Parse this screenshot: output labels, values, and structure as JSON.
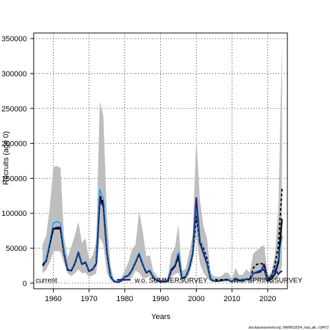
{
  "chart_data": {
    "type": "line",
    "title": "",
    "xlabel": "Years",
    "ylabel": "Recruits (age 0)",
    "xlim": [
      1954.5,
      2025.5
    ],
    "ylim": [
      -8000,
      358000
    ],
    "x_ticks": [
      1960,
      1970,
      1980,
      1990,
      2000,
      2010,
      2020
    ],
    "x_tick_labels": [
      "1960",
      "1970",
      "1980",
      "1990",
      "2000",
      "2010",
      "2020"
    ],
    "y_ticks": [
      0,
      50000,
      100000,
      150000,
      200000,
      250000,
      300000,
      350000
    ],
    "y_tick_labels": [
      "0",
      "50000",
      "100000",
      "150000",
      "200000",
      "250000",
      "300000",
      "350000"
    ],
    "grid": true,
    "grid_style": "dotted",
    "legend_position": "bottom",
    "caption": "stockassessment.org, NWWG2024_had_alk, r18472",
    "colors": {
      "band": "#bebebe",
      "current": "#000000",
      "summer": "#2a1f7a",
      "spring": "#87ceeb",
      "blue": "#1c6ed8"
    },
    "x": [
      1957,
      1958,
      1959,
      1960,
      1961,
      1962,
      1963,
      1964,
      1965,
      1966,
      1967,
      1968,
      1969,
      1970,
      1971,
      1972,
      1973,
      1974,
      1975,
      1976,
      1977,
      1978,
      1979,
      1980,
      1981,
      1982,
      1983,
      1984,
      1985,
      1986,
      1987,
      1988,
      1989,
      1990,
      1991,
      1992,
      1993,
      1994,
      1995,
      1996,
      1997,
      1998,
      1999,
      2000,
      2001,
      2002,
      2003,
      2004,
      2005,
      2006,
      2007,
      2008,
      2009,
      2010,
      2011,
      2012,
      2013,
      2014,
      2015,
      2016,
      2017,
      2018,
      2019,
      2020,
      2021,
      2022,
      2023,
      2024
    ],
    "band_lower": [
      14000,
      19000,
      30000,
      45000,
      46000,
      45000,
      28000,
      14000,
      10000,
      14000,
      20000,
      14000,
      15000,
      9000,
      11000,
      14000,
      65000,
      55000,
      15000,
      4000,
      1000,
      500,
      1500,
      4000,
      4000,
      8000,
      18000,
      15000,
      8000,
      7000,
      10000,
      4000,
      2000,
      1000,
      1000,
      1500,
      9000,
      13000,
      15000,
      3000,
      5000,
      12000,
      30000,
      70000,
      28000,
      15000,
      8000,
      2000,
      1500,
      1500,
      1500,
      2000,
      2000,
      1000,
      1500,
      1500,
      1500,
      2000,
      1500,
      4000,
      5000,
      5000,
      5000,
      1000,
      2000,
      5000,
      8000,
      25000
    ],
    "band_upper": [
      56000,
      68000,
      108000,
      166000,
      168000,
      165000,
      65000,
      37000,
      52000,
      68000,
      88000,
      58000,
      64000,
      32000,
      40000,
      60000,
      260000,
      240000,
      95000,
      25000,
      5000,
      4000,
      8000,
      18000,
      30000,
      48000,
      55000,
      103000,
      75000,
      38000,
      40000,
      17000,
      10000,
      5000,
      5000,
      8000,
      42000,
      50000,
      84000,
      18000,
      20000,
      44000,
      70000,
      210000,
      120000,
      82000,
      64000,
      15000,
      10000,
      9000,
      10000,
      15000,
      15000,
      6000,
      22000,
      12000,
      12000,
      20000,
      15000,
      43000,
      47000,
      52000,
      54000,
      12000,
      15000,
      40000,
      110000,
      345000
    ],
    "series": [
      {
        "name": "current",
        "style": "solid",
        "values": [
          25000,
          32000,
          56000,
          78000,
          78000,
          78000,
          42000,
          19000,
          18000,
          28000,
          44000,
          27000,
          30000,
          17000,
          20000,
          28000,
          122000,
          114000,
          44000,
          10000,
          2500,
          1500,
          3000,
          9000,
          11000,
          19000,
          30000,
          42000,
          27000,
          15000,
          18000,
          8000,
          4000,
          2000,
          2000,
          3000,
          18000,
          24000,
          38000,
          7000,
          9000,
          21000,
          43000,
          115000,
          58000,
          43000,
          28000,
          6000,
          3000,
          3000,
          4000,
          5000,
          5000,
          2000,
          7000,
          4000,
          4000,
          6000,
          5000,
          14000,
          16000,
          18000,
          20000,
          4000,
          6000,
          13000,
          30000,
          92000
        ]
      },
      {
        "name": "w.o. SUMMERSURVEY",
        "style": "solid",
        "values": [
          25000,
          32000,
          56000,
          78000,
          80000,
          80000,
          42000,
          19000,
          18000,
          28000,
          44000,
          27000,
          30000,
          17000,
          20000,
          28000,
          118000,
          110000,
          44000,
          10000,
          2500,
          1500,
          3000,
          9000,
          11000,
          19000,
          30000,
          42000,
          27000,
          15000,
          18000,
          8000,
          4000,
          2000,
          2000,
          3000,
          20000,
          25000,
          42000,
          7000,
          9000,
          21000,
          43000,
          122000,
          60000,
          43000,
          28000,
          6000,
          3000,
          3000,
          4000,
          5000,
          5000,
          2000,
          7000,
          4000,
          4000,
          6000,
          5000,
          14000,
          15000,
          16000,
          27000,
          6000,
          10000,
          20000,
          13000,
          18000
        ]
      },
      {
        "name": "w.o. SPRINGSURVEY",
        "style": "dashed",
        "values": [
          25000,
          32000,
          56000,
          78000,
          78000,
          78000,
          42000,
          19000,
          18000,
          28000,
          44000,
          27000,
          30000,
          17000,
          20000,
          28000,
          125000,
          117000,
          44000,
          10000,
          2500,
          1500,
          3000,
          9000,
          11000,
          19000,
          30000,
          42000,
          27000,
          15000,
          18000,
          8000,
          4000,
          2000,
          2000,
          3000,
          18000,
          24000,
          38000,
          7000,
          9000,
          21000,
          43000,
          95000,
          60000,
          50000,
          35000,
          6000,
          3000,
          3000,
          4000,
          5000,
          5000,
          2000,
          7000,
          4000,
          4000,
          6000,
          5000,
          22000,
          27000,
          28000,
          27000,
          5000,
          8000,
          26000,
          54000,
          135000
        ]
      },
      {
        "name": "",
        "style": "solid",
        "values": [
          28000,
          33000,
          60000,
          86000,
          88000,
          86000,
          43000,
          20000,
          19000,
          30000,
          44000,
          28000,
          31000,
          18000,
          21000,
          30000,
          134000,
          120000,
          46000,
          11000,
          3000,
          2000,
          3500,
          9500,
          12000,
          20000,
          31000,
          44000,
          28000,
          16000,
          19000,
          8500,
          4500,
          2500,
          2500,
          3500,
          21000,
          26000,
          44000,
          8000,
          10000,
          22000,
          45000,
          107000,
          62000,
          46000,
          31000,
          7000,
          3500,
          3500,
          4500,
          5500,
          5500,
          2500,
          7500,
          5000,
          4500,
          7000,
          5500,
          15000,
          17000,
          19000,
          21000,
          5000,
          7000,
          22000,
          34000,
          68000
        ]
      }
    ]
  }
}
